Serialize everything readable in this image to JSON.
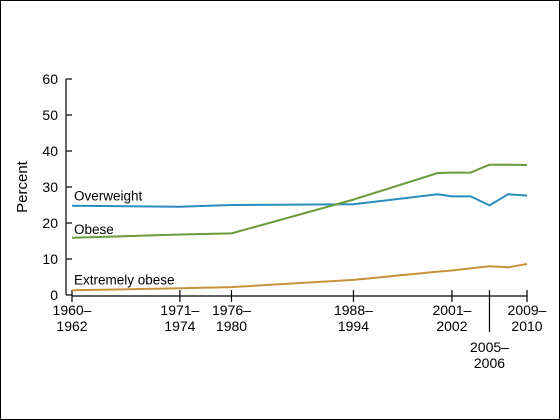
{
  "chart_data": {
    "type": "line",
    "ylabel": "Percent",
    "ylim": [
      0,
      60
    ],
    "yticks": [
      0,
      10,
      20,
      30,
      40,
      50,
      60
    ],
    "xlim": [
      1961,
      2009.5
    ],
    "xticks": [
      {
        "x": 1961,
        "label": [
          "1960–",
          "1962"
        ],
        "placement": "above"
      },
      {
        "x": 1972.5,
        "label": [
          "1971–",
          "1974"
        ],
        "placement": "above"
      },
      {
        "x": 1978,
        "label": [
          "1976–",
          "1980"
        ],
        "placement": "above"
      },
      {
        "x": 1991,
        "label": [
          "1988–",
          "1994"
        ],
        "placement": "above"
      },
      {
        "x": 2001.5,
        "label": [
          "2001–",
          "2002"
        ],
        "placement": "above"
      },
      {
        "x": 2005.5,
        "label": [
          "2005–",
          "2006"
        ],
        "placement": "below"
      },
      {
        "x": 2009.5,
        "label": [
          "2009–",
          "2010"
        ],
        "placement": "above"
      }
    ],
    "grid": false,
    "series": [
      {
        "name": "Overweight",
        "color": "#2b8cbe",
        "points": [
          [
            1961,
            24.8
          ],
          [
            1972.5,
            24.5
          ],
          [
            1978,
            25.0
          ],
          [
            1991,
            25.2
          ],
          [
            2000,
            28.0
          ],
          [
            2001.5,
            27.4
          ],
          [
            2003.5,
            27.4
          ],
          [
            2005.5,
            24.9
          ],
          [
            2007.5,
            28.0
          ],
          [
            2009.5,
            27.6
          ]
        ]
      },
      {
        "name": "Obese",
        "color": "#6b9a3c",
        "points": [
          [
            1961,
            15.9
          ],
          [
            1972.5,
            16.8
          ],
          [
            1978,
            17.1
          ],
          [
            1991,
            26.5
          ],
          [
            2000,
            33.9
          ],
          [
            2001.5,
            34.0
          ],
          [
            2003.5,
            34.0
          ],
          [
            2005.5,
            36.2
          ],
          [
            2007.5,
            36.2
          ],
          [
            2009.5,
            36.1
          ]
        ]
      },
      {
        "name": "Extremely obese",
        "color": "#c8923c",
        "points": [
          [
            1961,
            1.3
          ],
          [
            1972.5,
            1.9
          ],
          [
            1978,
            2.2
          ],
          [
            1991,
            4.2
          ],
          [
            2000,
            6.5
          ],
          [
            2001.5,
            6.8
          ],
          [
            2003.5,
            7.4
          ],
          [
            2005.5,
            8.0
          ],
          [
            2007.5,
            7.7
          ],
          [
            2009.5,
            8.6
          ]
        ]
      }
    ]
  }
}
